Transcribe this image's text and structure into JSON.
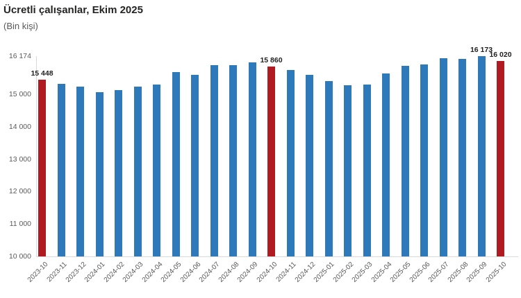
{
  "header": {
    "title": "Ücretli çalışanlar, Ekim 2025",
    "subtitle": "(Bin kişi)"
  },
  "colors": {
    "bar_default": "#2e79b9",
    "bar_highlight": "#b01a21",
    "axis_line": "#d9d9d9",
    "axis_text": "#595959",
    "data_label_text": "#1f1f1f"
  },
  "chart_data": {
    "type": "bar",
    "title": "Ücretli çalışanlar, Ekim 2025",
    "subtitle": "(Bin kişi)",
    "ylabel": "Bin kişi",
    "xlabel": "",
    "grid": false,
    "legend": false,
    "ylim": [
      10000,
      16174
    ],
    "y_ticks": [
      {
        "label": "16 174",
        "value": 16174
      },
      {
        "label": "15 000",
        "value": 15000
      },
      {
        "label": "14 000",
        "value": 14000
      },
      {
        "label": "13 000",
        "value": 13000
      },
      {
        "label": "12 000",
        "value": 12000
      },
      {
        "label": "11 000",
        "value": 11000
      },
      {
        "label": "10 000",
        "value": 10000
      }
    ],
    "categories": [
      "2023-10",
      "2023-11",
      "2023-12",
      "2024-01",
      "2024-02",
      "2024-03",
      "2024-04",
      "2024-05",
      "2024-06",
      "2024-07",
      "2024-08",
      "2024-09",
      "2024-10",
      "2024-11",
      "2024-12",
      "2025-01",
      "2025-02",
      "2025-03",
      "2025-04",
      "2025-05",
      "2025-06",
      "2025-07",
      "2025-08",
      "2025-09",
      "2025-10"
    ],
    "values": [
      15448,
      15310,
      15240,
      15060,
      15120,
      15230,
      15290,
      15690,
      15590,
      15890,
      15890,
      15990,
      15860,
      15740,
      15600,
      15400,
      15280,
      15300,
      15650,
      15870,
      15920,
      16100,
      16080,
      16173,
      16020
    ],
    "highlighted_categories": [
      "2023-10",
      "2024-10",
      "2025-10"
    ],
    "data_labels": {
      "2023-10": "15 448",
      "2024-10": "15 860",
      "2025-09": "16 173",
      "2025-10": "16 020"
    }
  }
}
